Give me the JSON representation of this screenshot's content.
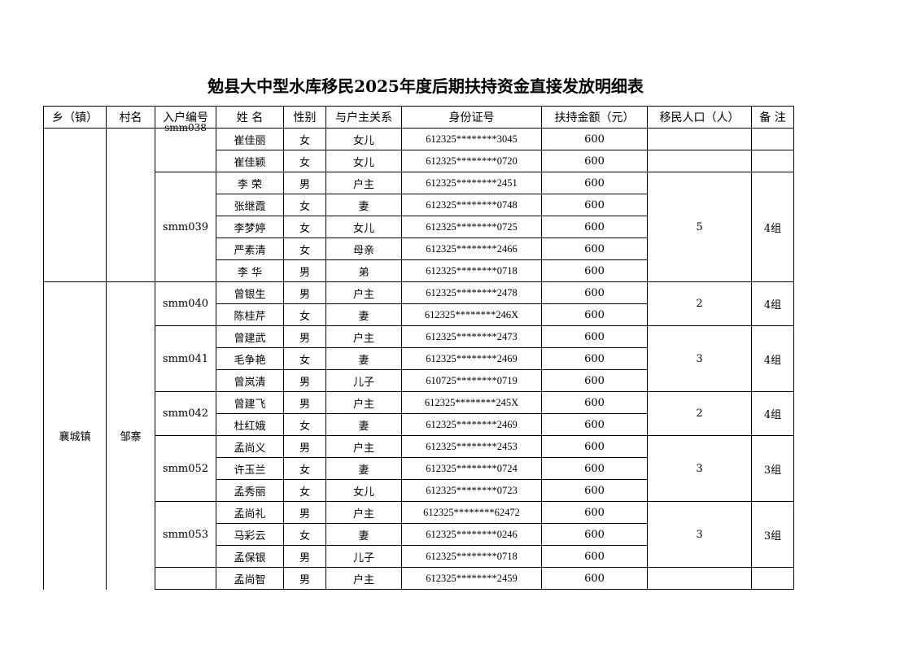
{
  "title": "勉县大中型水库移民2025年度后期扶持资金直接发放明细表",
  "headers": [
    "乡（镇）",
    "村名",
    "入户编号",
    "姓  名",
    "性别",
    "与户主关系",
    "身份证号",
    "扶持金额（元）",
    "移民人口（人）",
    "备 注"
  ],
  "groups": [
    {
      "town": "",
      "village": "",
      "households": [
        {
          "id": "smm038",
          "clipped": true,
          "split": true,
          "population": "",
          "note": "",
          "members": [
            [
              "崔佳丽",
              "女",
              "女儿",
              "612325********3045",
              "600"
            ],
            [
              "崔佳颖",
              "女",
              "女儿",
              "612325********0720",
              "600"
            ]
          ]
        },
        {
          "id": "smm039",
          "population": "5",
          "note": "4组",
          "members": [
            [
              "李  荣",
              "男",
              "户主",
              "612325********2451",
              "600"
            ],
            [
              "张继霞",
              "女",
              "妻",
              "612325********0748",
              "600"
            ],
            [
              "李梦婷",
              "女",
              "女儿",
              "612325********0725",
              "600"
            ],
            [
              "严素清",
              "女",
              "母亲",
              "612325********2466",
              "600"
            ],
            [
              "李  华",
              "男",
              "弟",
              "612325********0718",
              "600"
            ]
          ]
        }
      ]
    },
    {
      "town": "襄城镇",
      "village": "邹寨",
      "open": true,
      "households": [
        {
          "id": "smm040",
          "population": "2",
          "note": "4组",
          "members": [
            [
              "曾银生",
              "男",
              "户主",
              "612325********2478",
              "600"
            ],
            [
              "陈桂芹",
              "女",
              "妻",
              "612325********246X",
              "600"
            ]
          ]
        },
        {
          "id": "smm041",
          "population": "3",
          "note": "4组",
          "members": [
            [
              "曾建武",
              "男",
              "户主",
              "612325********2473",
              "600"
            ],
            [
              "毛争艳",
              "女",
              "妻",
              "612325********2469",
              "600"
            ],
            [
              "曾岚清",
              "男",
              "儿子",
              "610725********0719",
              "600"
            ]
          ]
        },
        {
          "id": "smm042",
          "population": "2",
          "note": "4组",
          "members": [
            [
              "曾建飞",
              "男",
              "户主",
              "612325********245X",
              "600"
            ],
            [
              "杜红娥",
              "女",
              "妻",
              "612325********2469",
              "600"
            ]
          ]
        },
        {
          "id": "smm052",
          "population": "3",
          "note": "3组",
          "members": [
            [
              "孟尚义",
              "男",
              "户主",
              "612325********2453",
              "600"
            ],
            [
              "许玉兰",
              "女",
              "妻",
              "612325********0724",
              "600"
            ],
            [
              "孟秀丽",
              "女",
              "女儿",
              "612325********0723",
              "600"
            ]
          ]
        },
        {
          "id": "smm053",
          "population": "3",
          "note": "3组",
          "members": [
            [
              "孟尚礼",
              "男",
              "户主",
              "612325********62472",
              "600"
            ],
            [
              "马彩云",
              "女",
              "妻",
              "612325********0246",
              "600"
            ],
            [
              "孟保银",
              "男",
              "儿子",
              "612325********0718",
              "600"
            ]
          ]
        },
        {
          "id": "",
          "population": "",
          "note": "",
          "members": [
            [
              "孟尚智",
              "男",
              "户主",
              "612325********2459",
              "600"
            ]
          ]
        }
      ]
    }
  ]
}
